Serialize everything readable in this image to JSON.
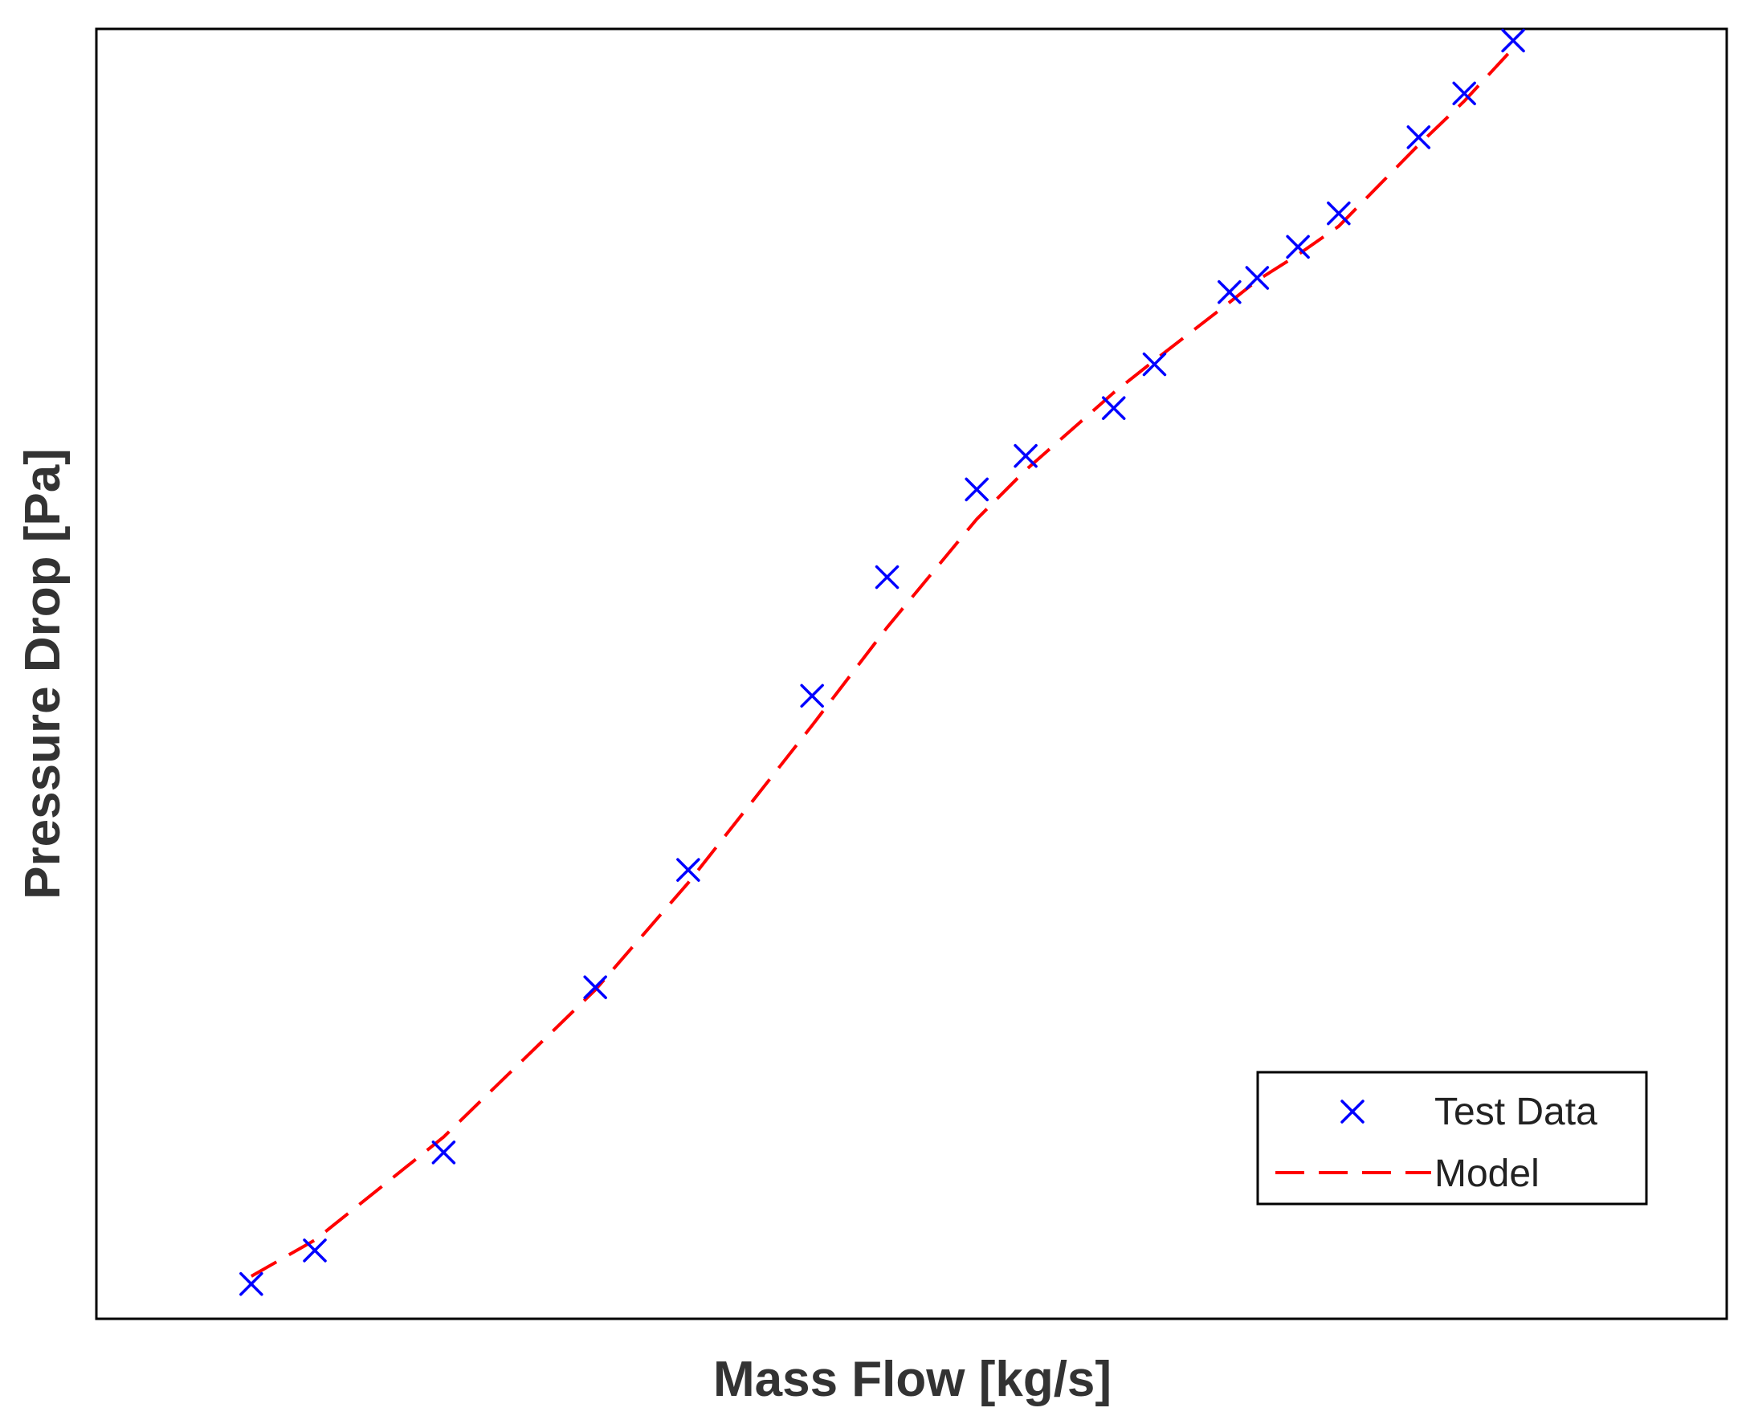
{
  "chart_data": {
    "type": "scatter",
    "xlabel": "Mass Flow [kg/s]",
    "ylabel": "Pressure Drop [Pa]",
    "xlim": [
      0,
      1
    ],
    "ylim": [
      0,
      1
    ],
    "ticks_shown": false,
    "grid": false,
    "legend_placement": "bottom-right",
    "series": [
      {
        "name": "Test Data",
        "style": "marker",
        "marker": "x",
        "color": "#0000ff",
        "x": [
          0.095,
          0.134,
          0.213,
          0.306,
          0.363,
          0.439,
          0.485,
          0.54,
          0.57,
          0.624,
          0.649,
          0.695,
          0.712,
          0.737,
          0.762,
          0.811,
          0.839,
          0.869
        ],
        "y": [
          0.027,
          0.053,
          0.129,
          0.257,
          0.348,
          0.483,
          0.575,
          0.643,
          0.669,
          0.706,
          0.74,
          0.796,
          0.807,
          0.831,
          0.857,
          0.916,
          0.95,
          0.991
        ]
      },
      {
        "name": "Model",
        "style": "dashed-line",
        "color": "#ff0000",
        "x": [
          0.095,
          0.134,
          0.213,
          0.306,
          0.363,
          0.439,
          0.485,
          0.54,
          0.57,
          0.624,
          0.649,
          0.695,
          0.712,
          0.737,
          0.762,
          0.811,
          0.839,
          0.869
        ],
        "y": [
          0.033,
          0.061,
          0.141,
          0.255,
          0.338,
          0.46,
          0.536,
          0.62,
          0.658,
          0.718,
          0.743,
          0.788,
          0.805,
          0.825,
          0.847,
          0.91,
          0.944,
          0.985
        ]
      }
    ]
  }
}
